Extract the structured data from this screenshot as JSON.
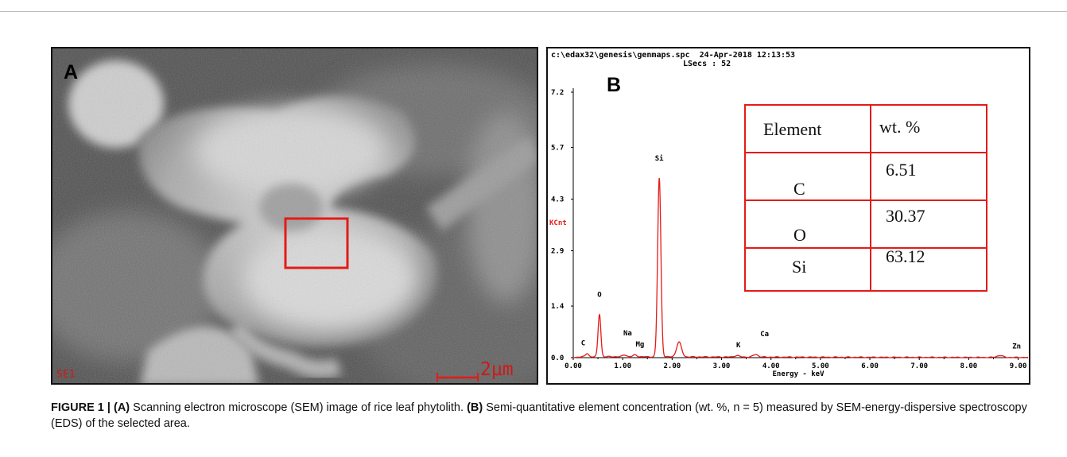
{
  "figure": {
    "panel_a": {
      "letter": "A",
      "detector_label": "SE1",
      "scale_bar_label": "2μm"
    },
    "panel_b": {
      "letter": "B",
      "header": {
        "file_line": "c:\\edax32\\genesis\\genmaps.spc  24-Apr-2018 12:13:53",
        "lsecs_line": "LSecs : 52"
      },
      "composition_table": {
        "headers": [
          "Element",
          "wt. %"
        ],
        "rows": [
          {
            "element": "C",
            "wt": "6.51"
          },
          {
            "element": "O",
            "wt": "30.37"
          },
          {
            "element": "Si",
            "wt": "63.12"
          }
        ]
      }
    },
    "caption": {
      "label": "FIGURE 1 |",
      "a_tag": "(A)",
      "a_text": "Scanning electron microscope (SEM) image of rice leaf phytolith.",
      "b_tag": "(B)",
      "b_text": "Semi-quantitative element concentration (wt. %, n = 5) measured by SEM-energy-dispersive spectroscopy (EDS) of the selected area."
    }
  },
  "chart_data": {
    "type": "line",
    "xlabel": "Energy - keV",
    "ylabel": "KCnt",
    "xlim": [
      0,
      9.2
    ],
    "ylim": [
      0,
      7.2
    ],
    "x_ticks": [
      "0.00",
      "1.00",
      "2.00",
      "3.00",
      "4.00",
      "5.00",
      "6.00",
      "7.00",
      "8.00",
      "9.00"
    ],
    "y_ticks": [
      "0.0",
      "1.4",
      "2.9",
      "4.3",
      "5.7",
      "7.2"
    ],
    "series_color": "#e41b17",
    "background_level": 0.03,
    "peaks": [
      {
        "element": "C",
        "energy": 0.28,
        "counts": 0.08,
        "width": 0.03
      },
      {
        "element": "O",
        "energy": 0.53,
        "counts": 1.15,
        "width": 0.028
      },
      {
        "element": "Na",
        "energy": 1.04,
        "counts": 0.05,
        "width": 0.04
      },
      {
        "element": "Mg",
        "energy": 1.25,
        "counts": 0.05,
        "width": 0.04
      },
      {
        "element": "Si",
        "energy": 1.74,
        "counts": 4.85,
        "width": 0.033
      },
      {
        "element": "",
        "energy": 2.14,
        "counts": 0.4,
        "width": 0.05
      },
      {
        "element": "K",
        "energy": 3.31,
        "counts": 0.04,
        "width": 0.05
      },
      {
        "element": "Ca",
        "energy": 3.69,
        "counts": 0.07,
        "width": 0.05
      },
      {
        "element": "Zn",
        "energy": 8.63,
        "counts": 0.05,
        "width": 0.06
      }
    ],
    "peak_labels": [
      {
        "text": "C",
        "energy": 0.2,
        "counts": 0.33
      },
      {
        "text": "O",
        "energy": 0.53,
        "counts": 1.65
      },
      {
        "text": "Na",
        "energy": 1.1,
        "counts": 0.6
      },
      {
        "text": "Mg",
        "energy": 1.35,
        "counts": 0.3
      },
      {
        "text": "Si",
        "energy": 1.74,
        "counts": 5.35
      },
      {
        "text": "K",
        "energy": 3.34,
        "counts": 0.28
      },
      {
        "text": "Ca",
        "energy": 3.87,
        "counts": 0.58
      },
      {
        "text": "Zn",
        "energy": 8.97,
        "counts": 0.25
      }
    ]
  }
}
